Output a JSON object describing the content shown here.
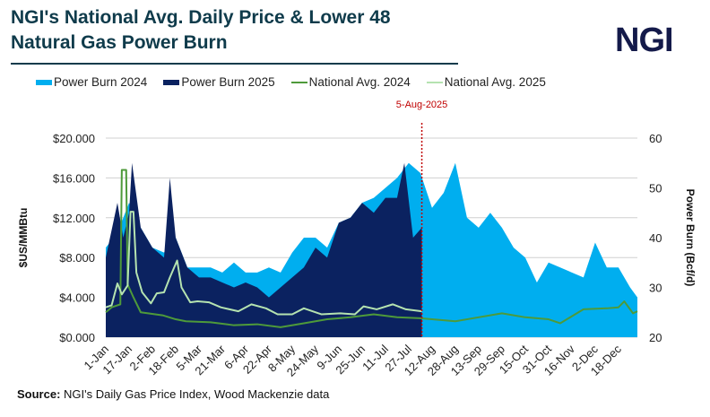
{
  "header": {
    "title": "NGI's National Avg. Daily Price & Lower 48 Natural Gas Power Burn",
    "logo": "NGI"
  },
  "source": {
    "label": "Source:",
    "text": "NGI's Daily Gas Price Index, Wood Mackenzie data"
  },
  "chart_data": {
    "type": "area+line",
    "title": "NGI's National Avg. Daily Price & Lower 48 Natural Gas Power Burn",
    "ylabel": "$US/MMBtu",
    "y2label": "Power Burn (Bcf/d)",
    "ylim": [
      0,
      20
    ],
    "y2lim": [
      20,
      60
    ],
    "yticks": [
      "$0.000",
      "$4.000",
      "$8.000",
      "$12.000",
      "$16.000",
      "$20.000"
    ],
    "y2ticks": [
      "20",
      "30",
      "40",
      "50",
      "60"
    ],
    "xticks": [
      "1-Jan",
      "17-Jan",
      "2-Feb",
      "18-Feb",
      "5-Mar",
      "21-Mar",
      "6-Apr",
      "22-Apr",
      "8-May",
      "24-May",
      "9-Jun",
      "25-Jun",
      "11-Jul",
      "27-Jul",
      "12-Aug",
      "28-Aug",
      "13-Sep",
      "29-Sep",
      "15-Oct",
      "31-Oct",
      "16-Nov",
      "2-Dec",
      "18-Dec"
    ],
    "grid": true,
    "legend_position": "top",
    "annotation": {
      "label": "5-Aug-2025",
      "date": "5-Aug",
      "color": "#c00000"
    },
    "series": [
      {
        "name": "Power Burn 2024",
        "kind": "area",
        "axis": "right",
        "color": "#00aeef",
        "points": [
          [
            "1-Jan",
            38
          ],
          [
            "9-Jan",
            41
          ],
          [
            "17-Jan",
            47
          ],
          [
            "25-Jan",
            42
          ],
          [
            "2-Feb",
            38
          ],
          [
            "10-Feb",
            37
          ],
          [
            "18-Feb",
            40
          ],
          [
            "26-Feb",
            34
          ],
          [
            "5-Mar",
            34
          ],
          [
            "13-Mar",
            34
          ],
          [
            "21-Mar",
            33
          ],
          [
            "29-Mar",
            35
          ],
          [
            "6-Apr",
            33
          ],
          [
            "14-Apr",
            33
          ],
          [
            "22-Apr",
            34
          ],
          [
            "30-Apr",
            33
          ],
          [
            "8-May",
            37
          ],
          [
            "16-May",
            40
          ],
          [
            "24-May",
            40
          ],
          [
            "1-Jun",
            38
          ],
          [
            "9-Jun",
            43
          ],
          [
            "17-Jun",
            44
          ],
          [
            "25-Jun",
            47
          ],
          [
            "3-Jul",
            48
          ],
          [
            "11-Jul",
            50
          ],
          [
            "19-Jul",
            52
          ],
          [
            "27-Jul",
            55
          ],
          [
            "4-Aug",
            53
          ],
          [
            "12-Aug",
            46
          ],
          [
            "20-Aug",
            49
          ],
          [
            "28-Aug",
            55
          ],
          [
            "5-Sep",
            44
          ],
          [
            "13-Sep",
            42
          ],
          [
            "21-Sep",
            45
          ],
          [
            "29-Sep",
            42
          ],
          [
            "7-Oct",
            38
          ],
          [
            "15-Oct",
            36
          ],
          [
            "23-Oct",
            31
          ],
          [
            "31-Oct",
            35
          ],
          [
            "8-Nov",
            34
          ],
          [
            "16-Nov",
            33
          ],
          [
            "24-Nov",
            32
          ],
          [
            "2-Dec",
            39
          ],
          [
            "10-Dec",
            34
          ],
          [
            "18-Dec",
            34
          ],
          [
            "26-Dec",
            30
          ],
          [
            "31-Dec",
            28
          ]
        ]
      },
      {
        "name": "Power Burn 2025",
        "kind": "area",
        "axis": "right",
        "color": "#0b2260",
        "points": [
          [
            "1-Jan",
            36
          ],
          [
            "9-Jan",
            47
          ],
          [
            "13-Jan",
            40
          ],
          [
            "17-Jan",
            45
          ],
          [
            "19-Jan",
            55
          ],
          [
            "25-Jan",
            42
          ],
          [
            "2-Feb",
            38
          ],
          [
            "10-Feb",
            36
          ],
          [
            "14-Feb",
            52
          ],
          [
            "18-Feb",
            40
          ],
          [
            "26-Feb",
            34
          ],
          [
            "5-Mar",
            32
          ],
          [
            "13-Mar",
            32
          ],
          [
            "21-Mar",
            31
          ],
          [
            "29-Mar",
            30
          ],
          [
            "6-Apr",
            31
          ],
          [
            "14-Apr",
            30
          ],
          [
            "22-Apr",
            28
          ],
          [
            "30-Apr",
            30
          ],
          [
            "8-May",
            32
          ],
          [
            "16-May",
            34
          ],
          [
            "24-May",
            38
          ],
          [
            "1-Jun",
            36
          ],
          [
            "9-Jun",
            43
          ],
          [
            "17-Jun",
            44
          ],
          [
            "25-Jun",
            47
          ],
          [
            "3-Jul",
            45
          ],
          [
            "11-Jul",
            48
          ],
          [
            "19-Jul",
            48
          ],
          [
            "24-Jul",
            55
          ],
          [
            "30-Jul",
            40
          ],
          [
            "5-Aug",
            42
          ]
        ]
      },
      {
        "name": "National Avg. 2024",
        "kind": "line",
        "axis": "left",
        "color": "#4e9a3a",
        "points": [
          [
            "1-Jan",
            2.5
          ],
          [
            "5-Jan",
            3.0
          ],
          [
            "11-Jan",
            3.3
          ],
          [
            "12-Jan",
            16.8
          ],
          [
            "15-Jan",
            16.8
          ],
          [
            "16-Jan",
            5.3
          ],
          [
            "20-Jan",
            4.0
          ],
          [
            "25-Jan",
            2.5
          ],
          [
            "9-Feb",
            2.2
          ],
          [
            "18-Feb",
            1.8
          ],
          [
            "25-Feb",
            1.6
          ],
          [
            "13-Mar",
            1.5
          ],
          [
            "29-Mar",
            1.2
          ],
          [
            "14-Apr",
            1.3
          ],
          [
            "30-Apr",
            1.0
          ],
          [
            "16-May",
            1.4
          ],
          [
            "1-Jun",
            1.8
          ],
          [
            "17-Jun",
            2.0
          ],
          [
            "3-Jul",
            2.3
          ],
          [
            "19-Jul",
            2.0
          ],
          [
            "4-Aug",
            1.9
          ],
          [
            "28-Aug",
            1.6
          ],
          [
            "13-Sep",
            2.0
          ],
          [
            "29-Sep",
            2.4
          ],
          [
            "15-Oct",
            2.0
          ],
          [
            "31-Oct",
            1.8
          ],
          [
            "8-Nov",
            1.4
          ],
          [
            "24-Nov",
            2.8
          ],
          [
            "10-Dec",
            2.9
          ],
          [
            "18-Dec",
            3.0
          ],
          [
            "22-Dec",
            3.6
          ],
          [
            "28-Dec",
            2.4
          ],
          [
            "31-Dec",
            2.6
          ]
        ]
      },
      {
        "name": "National Avg. 2025",
        "kind": "line",
        "axis": "left",
        "color": "#b5e3b0",
        "points": [
          [
            "1-Jan",
            3.0
          ],
          [
            "5-Jan",
            3.2
          ],
          [
            "9-Jan",
            5.4
          ],
          [
            "12-Jan",
            4.3
          ],
          [
            "16-Jan",
            5.2
          ],
          [
            "18-Jan",
            12.6
          ],
          [
            "20-Jan",
            12.6
          ],
          [
            "22-Jan",
            6.5
          ],
          [
            "26-Jan",
            4.5
          ],
          [
            "1-Feb",
            3.4
          ],
          [
            "5-Feb",
            4.4
          ],
          [
            "10-Feb",
            4.5
          ],
          [
            "14-Feb",
            6.0
          ],
          [
            "19-Feb",
            7.7
          ],
          [
            "22-Feb",
            5.0
          ],
          [
            "28-Feb",
            3.5
          ],
          [
            "4-Mar",
            3.6
          ],
          [
            "12-Mar",
            3.5
          ],
          [
            "20-Mar",
            3.0
          ],
          [
            "1-Apr",
            2.6
          ],
          [
            "10-Apr",
            3.3
          ],
          [
            "20-Apr",
            2.9
          ],
          [
            "28-Apr",
            2.3
          ],
          [
            "8-May",
            2.3
          ],
          [
            "16-May",
            2.9
          ],
          [
            "28-May",
            2.3
          ],
          [
            "10-Jun",
            2.4
          ],
          [
            "20-Jun",
            2.3
          ],
          [
            "26-Jun",
            3.1
          ],
          [
            "5-Jul",
            2.8
          ],
          [
            "16-Jul",
            3.3
          ],
          [
            "25-Jul",
            2.8
          ],
          [
            "5-Aug",
            2.6
          ]
        ]
      }
    ]
  }
}
